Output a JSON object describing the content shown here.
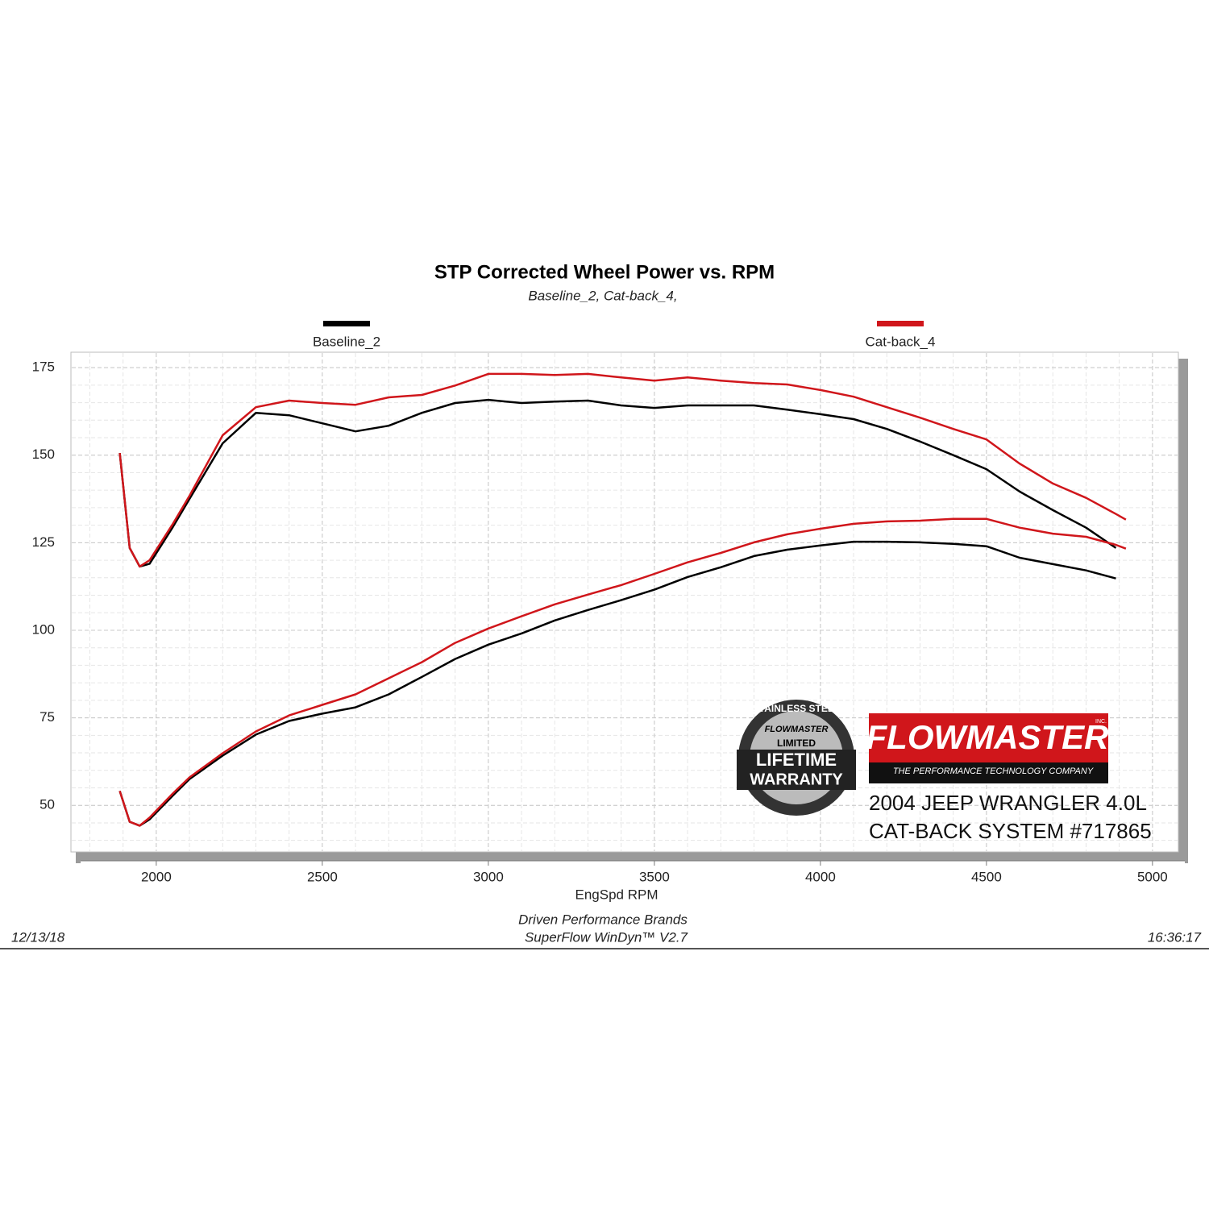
{
  "chart_data": {
    "type": "line",
    "title": "STP Corrected Wheel Power vs. RPM",
    "subtitle": "Baseline_2, Cat-back_4,",
    "x_label": "EngSpd  RPM",
    "x": [
      1890,
      1920,
      1950,
      1980,
      2050,
      2100,
      2200,
      2300,
      2400,
      2500,
      2600,
      2700,
      2800,
      2900,
      3000,
      3100,
      3200,
      3300,
      3400,
      3500,
      3600,
      3700,
      3800,
      3900,
      4000,
      4100,
      4200,
      4300,
      4400,
      4500,
      4600,
      4700,
      4800,
      4890,
      4920
    ],
    "series": [
      {
        "name": "Baseline_2",
        "color": "#000000",
        "values": [
          150.6,
          123.5,
          118.2,
          119,
          129.5,
          137.5,
          153.4,
          162.1,
          161.4,
          159.1,
          156.8,
          158.4,
          162.1,
          164.9,
          165.8,
          164.9,
          165.3,
          165.6,
          164.2,
          163.5,
          164.2,
          164.2,
          164.2,
          163,
          161.7,
          160.3,
          157.5,
          153.9,
          150,
          146,
          139.6,
          134.3,
          129.3,
          123.5,
          null
        ],
        "values2": [
          54.1,
          45.3,
          44.2,
          46,
          52.8,
          57.5,
          64.2,
          70.2,
          74.1,
          76.2,
          78,
          81.7,
          86.7,
          91.8,
          95.9,
          99.1,
          102.8,
          105.8,
          108.6,
          111.6,
          115.2,
          118,
          121.2,
          123,
          124.2,
          125.3,
          125.3,
          125.1,
          124.7,
          124,
          120.7,
          118.9,
          117.1,
          114.8,
          null
        ]
      },
      {
        "name": "Cat-back_4",
        "color": "#d0161b",
        "values": [
          150.6,
          123.5,
          118.2,
          120,
          130.4,
          138.4,
          155.7,
          163.7,
          165.6,
          164.9,
          164.4,
          166.5,
          167.2,
          169.9,
          173.2,
          173.2,
          172.9,
          173.2,
          172.2,
          171.3,
          172.2,
          171.3,
          170.6,
          170.2,
          168.6,
          166.7,
          163.7,
          160.7,
          157.5,
          154.5,
          147.6,
          141.9,
          137.8,
          133.2,
          131.6
        ],
        "values2": [
          54.1,
          45.3,
          44.2,
          46.5,
          53.4,
          58,
          64.9,
          71.1,
          75.7,
          78.7,
          81.7,
          86.3,
          90.9,
          96.4,
          100.5,
          104,
          107.4,
          110.2,
          112.9,
          116.1,
          119.4,
          122.1,
          125.1,
          127.4,
          129,
          130.4,
          131.1,
          131.3,
          131.8,
          131.8,
          129.3,
          127.6,
          126.7,
          124.4,
          123.3
        ]
      }
    ],
    "xlim": [
      1743,
      5078
    ],
    "ylim": [
      36.7,
      179.4
    ],
    "xticks": [
      2000,
      2500,
      3000,
      3500,
      4000,
      4500,
      5000
    ],
    "yticks": [
      50,
      75,
      100,
      125,
      150,
      175
    ],
    "grid": true,
    "grid_minor": {
      "x": 100,
      "y": 5
    },
    "legend": "top",
    "footer": {
      "company": "Driven Performance Brands",
      "software": "SuperFlow WinDyn™  V2.7",
      "date": "12/13/18",
      "time": "16:36:17"
    },
    "badge": {
      "arc": "STAINLESS STEEL",
      "brand": "FLOWMASTER",
      "limited": "LIMITED",
      "line1": "LIFETIME",
      "line2": "WARRANTY"
    },
    "logo": {
      "name": "FLOWMASTER",
      "inc": "INC.",
      "tagline": "THE PERFORMANCE TECHNOLOGY COMPANY"
    },
    "caption": [
      "2004 JEEP WRANGLER 4.0L",
      "CAT-BACK SYSTEM #717865"
    ]
  }
}
